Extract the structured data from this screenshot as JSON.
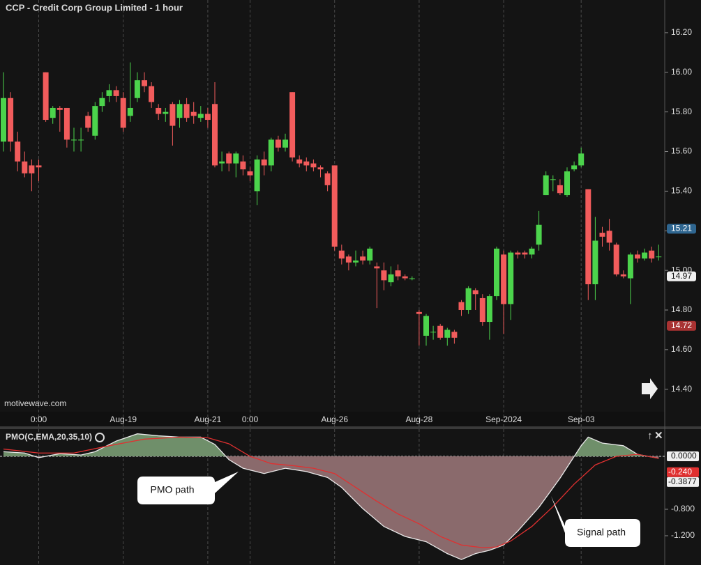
{
  "chart_data": [
    {
      "type": "candlestick",
      "title": "CCP - Credit Corp Group Limited - 1 hour",
      "watermark": "motivewave.com",
      "open": [
        15.65,
        15.87,
        15.65,
        15.55,
        15.53,
        15.53,
        16.0,
        15.77,
        15.82,
        15.82,
        15.66,
        15.66,
        15.78,
        15.68,
        15.83,
        15.88,
        15.91,
        15.87,
        15.78,
        15.87,
        15.96,
        15.93,
        15.82,
        15.79,
        15.84,
        15.77,
        15.84,
        15.8,
        15.77,
        15.79,
        15.84,
        15.54,
        15.59,
        15.54,
        15.55,
        15.5,
        15.4,
        15.56,
        15.53,
        15.66,
        15.62,
        15.9,
        15.56,
        15.55,
        15.54,
        15.52,
        15.49,
        15.53,
        15.1,
        15.07,
        15.04,
        15.07,
        15.05,
        15.02,
        15.0,
        14.94,
        15.0,
        14.97,
        14.96,
        14.79,
        14.67,
        14.69,
        14.72,
        14.66,
        14.69,
        14.84,
        14.8,
        14.9,
        14.86,
        14.74,
        14.87,
        15.08,
        14.83,
        15.09,
        15.09,
        15.08,
        15.13,
        15.38,
        15.46,
        15.43,
        15.38,
        15.51,
        15.53,
        15.41,
        14.93,
        15.19,
        15.2,
        15.13,
        14.98,
        14.96,
        15.08,
        15.06,
        15.1,
        15.07
      ],
      "high": [
        16.0,
        15.9,
        15.7,
        15.6,
        15.56,
        15.56,
        16.0,
        15.83,
        15.83,
        15.82,
        15.72,
        15.72,
        15.8,
        15.85,
        15.9,
        15.94,
        15.93,
        15.9,
        16.05,
        16.0,
        16.0,
        15.95,
        15.84,
        15.82,
        15.85,
        15.86,
        15.87,
        15.85,
        15.83,
        15.82,
        15.95,
        15.6,
        15.6,
        15.6,
        15.58,
        15.52,
        15.58,
        15.6,
        15.67,
        15.68,
        15.69,
        15.9,
        15.58,
        15.57,
        15.56,
        15.53,
        15.5,
        15.53,
        15.13,
        15.08,
        15.1,
        15.1,
        15.12,
        15.04,
        15.04,
        15.02,
        15.03,
        14.98,
        14.97,
        14.8,
        14.78,
        14.72,
        14.73,
        14.71,
        14.7,
        14.85,
        14.92,
        14.91,
        14.88,
        14.88,
        15.12,
        15.1,
        15.1,
        15.1,
        15.1,
        15.12,
        15.3,
        15.5,
        15.48,
        15.46,
        15.52,
        15.55,
        15.62,
        15.41,
        15.27,
        15.22,
        15.26,
        15.14,
        15.0,
        15.09,
        15.1,
        15.11,
        15.12,
        15.13
      ],
      "low": [
        15.6,
        15.6,
        15.5,
        15.47,
        15.4,
        15.45,
        15.75,
        15.74,
        15.7,
        15.62,
        15.6,
        15.6,
        15.7,
        15.66,
        15.8,
        15.85,
        15.85,
        15.7,
        15.75,
        15.85,
        15.9,
        15.82,
        15.76,
        15.75,
        15.63,
        15.72,
        15.75,
        15.74,
        15.75,
        15.72,
        15.52,
        15.5,
        15.5,
        15.47,
        15.48,
        15.45,
        15.33,
        15.48,
        15.5,
        15.6,
        15.6,
        15.55,
        15.52,
        15.5,
        15.5,
        15.47,
        15.4,
        15.1,
        15.03,
        15.0,
        15.02,
        15.03,
        15.03,
        14.81,
        14.9,
        14.92,
        14.95,
        14.95,
        14.95,
        14.62,
        14.62,
        14.65,
        14.65,
        14.62,
        14.63,
        14.77,
        14.78,
        14.8,
        14.72,
        14.65,
        14.85,
        14.68,
        14.75,
        15.06,
        15.06,
        15.06,
        15.1,
        15.38,
        15.4,
        15.38,
        15.37,
        15.5,
        15.52,
        14.85,
        14.85,
        15.12,
        15.1,
        14.97,
        14.96,
        14.83,
        15.04,
        15.05,
        15.04,
        15.05
      ],
      "close": [
        15.87,
        15.65,
        15.55,
        15.49,
        15.49,
        15.52,
        15.76,
        15.82,
        15.81,
        15.66,
        15.66,
        15.66,
        15.72,
        15.83,
        15.87,
        15.91,
        15.88,
        15.72,
        15.82,
        15.96,
        15.93,
        15.85,
        15.79,
        15.8,
        15.73,
        15.84,
        15.77,
        15.78,
        15.79,
        15.76,
        15.53,
        15.55,
        15.54,
        15.59,
        15.51,
        15.48,
        15.56,
        15.53,
        15.66,
        15.62,
        15.66,
        15.57,
        15.54,
        15.53,
        15.52,
        15.51,
        15.43,
        15.12,
        15.06,
        15.04,
        15.05,
        15.05,
        15.11,
        15.01,
        14.95,
        14.98,
        14.97,
        14.96,
        14.96,
        14.78,
        14.77,
        14.69,
        14.66,
        14.7,
        14.66,
        14.8,
        14.91,
        14.88,
        14.74,
        14.87,
        15.11,
        14.83,
        15.09,
        15.08,
        15.08,
        15.11,
        15.23,
        15.48,
        15.46,
        15.39,
        15.5,
        15.53,
        15.59,
        14.93,
        15.15,
        15.17,
        15.14,
        14.98,
        14.97,
        15.08,
        15.06,
        15.09,
        15.06,
        15.07
      ],
      "up_color": "#4cd44c",
      "down_color": "#f25c5c",
      "ylim": [
        14.29,
        16.365
      ],
      "yticks": [
        {
          "value": 14.4,
          "label": "14.40"
        },
        {
          "value": 14.6,
          "label": "14.60"
        },
        {
          "value": 14.8,
          "label": "14.80"
        },
        {
          "value": 15.0,
          "label": "15.00"
        },
        {
          "value": 15.2,
          "label": "15.20"
        },
        {
          "value": 15.4,
          "label": "15.40"
        },
        {
          "value": 15.6,
          "label": "15.60"
        },
        {
          "value": 15.8,
          "label": "15.80"
        },
        {
          "value": 16.0,
          "label": "16.00"
        },
        {
          "value": 16.2,
          "label": "16.20"
        }
      ],
      "xticks": [
        {
          "value": 5,
          "label": "0:00"
        },
        {
          "value": 17,
          "label": "Aug-19"
        },
        {
          "value": 29,
          "label": "Aug-21"
        },
        {
          "value": 35,
          "label": "0:00"
        },
        {
          "value": 47,
          "label": "Aug-26"
        },
        {
          "value": 59,
          "label": "Aug-28"
        },
        {
          "value": 71,
          "label": "Sep-2024"
        },
        {
          "value": 82,
          "label": "Sep-03"
        }
      ],
      "price_markers": [
        {
          "value": 15.21,
          "color": "#2f6690"
        },
        {
          "value": 14.97,
          "color": "#f0f0f0"
        },
        {
          "value": 14.72,
          "color": "#a83232"
        }
      ]
    },
    {
      "type": "line",
      "indicator_label": "PMO(C,EMA,20,35,10)",
      "series": [
        {
          "color": "#e8e8e8",
          "x": [
            0,
            3,
            5,
            8,
            11,
            13,
            16,
            19,
            22,
            25,
            28,
            30,
            32,
            34,
            37,
            40,
            43,
            46,
            48,
            51,
            54,
            57,
            60,
            63,
            65,
            67,
            69,
            71,
            73,
            76,
            79,
            82,
            83,
            85,
            88,
            90,
            93
          ],
          "values": [
            0.07,
            0.05,
            -0.02,
            0.04,
            0.02,
            0.07,
            0.23,
            0.34,
            0.31,
            0.29,
            0.29,
            0.18,
            -0.05,
            -0.18,
            -0.26,
            -0.18,
            -0.23,
            -0.32,
            -0.47,
            -0.79,
            -1.06,
            -1.21,
            -1.29,
            -1.47,
            -1.56,
            -1.47,
            -1.42,
            -1.34,
            -1.13,
            -0.77,
            -0.33,
            0.16,
            0.29,
            0.2,
            0.16,
            0.03,
            -0.03
          ]
        },
        {
          "color": "#e03030",
          "x": [
            0,
            5,
            10,
            15,
            20,
            25,
            29,
            32,
            35,
            38,
            41,
            44,
            47,
            50,
            53,
            56,
            59,
            62,
            65,
            68,
            70,
            72,
            75,
            78,
            81,
            84,
            87,
            90,
            93
          ],
          "values": [
            0.11,
            0.05,
            0.05,
            0.16,
            0.26,
            0.29,
            0.28,
            0.19,
            0,
            -0.11,
            -0.14,
            -0.18,
            -0.26,
            -0.47,
            -0.68,
            -0.87,
            -1.02,
            -1.21,
            -1.34,
            -1.38,
            -1.37,
            -1.28,
            -1.06,
            -0.76,
            -0.42,
            -0.13,
            0.0,
            0.03,
            -0.03
          ]
        }
      ],
      "ylim": [
        -1.642,
        0.4
      ],
      "yticks": [
        {
          "value": 0,
          "label": "0.0000"
        },
        {
          "value": -0.8,
          "label": "-0.800"
        },
        {
          "value": -1.2,
          "label": "-1.200"
        }
      ],
      "value_markers": [
        {
          "value": -0.24,
          "label": "-0.240",
          "color": "#e03030"
        },
        {
          "value": -0.3877,
          "label": "-0.3877",
          "color": "#f0f0f0"
        }
      ],
      "annotations": [
        "PMO path",
        "Signal path"
      ]
    }
  ]
}
